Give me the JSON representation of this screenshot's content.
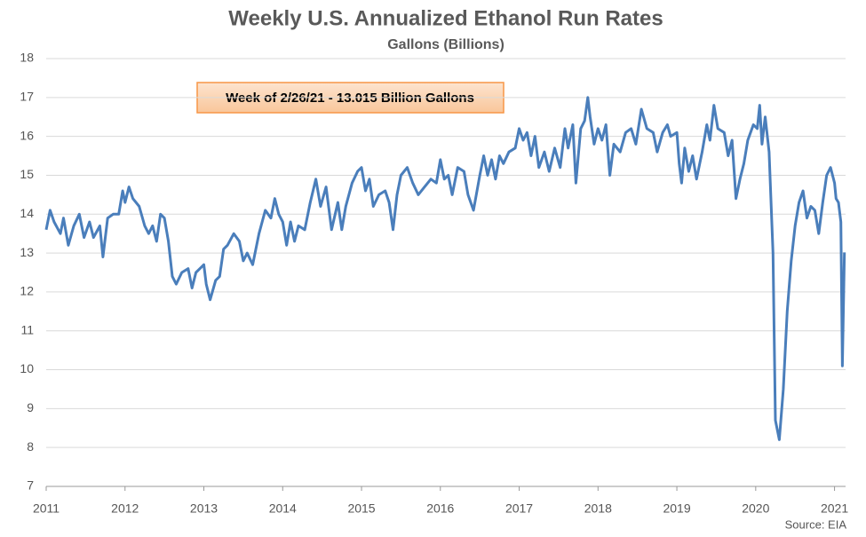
{
  "chart_data": {
    "type": "line",
    "title": "Weekly U.S. Annualized Ethanol Run Rates",
    "subtitle": "Gallons (Billions)",
    "annotation": "Week of 2/26/21 - 13.015 Billion Gallons",
    "source": "Source: EIA",
    "grid": true,
    "xlim": [
      2011,
      2021.14
    ],
    "xticks": [
      2011,
      2012,
      2013,
      2014,
      2015,
      2016,
      2017,
      2018,
      2019,
      2020,
      2021
    ],
    "ylim": [
      7,
      18
    ],
    "yticks": [
      7,
      8,
      9,
      10,
      11,
      12,
      13,
      14,
      15,
      16,
      17,
      18
    ],
    "series": [
      {
        "name": "Run Rate",
        "color": "#4a7ebb",
        "x": [
          2011.0,
          2011.05,
          2011.1,
          2011.18,
          2011.22,
          2011.28,
          2011.35,
          2011.42,
          2011.48,
          2011.55,
          2011.6,
          2011.68,
          2011.72,
          2011.78,
          2011.85,
          2011.92,
          2011.97,
          2012.0,
          2012.05,
          2012.1,
          2012.18,
          2012.25,
          2012.3,
          2012.35,
          2012.4,
          2012.45,
          2012.5,
          2012.55,
          2012.6,
          2012.65,
          2012.72,
          2012.8,
          2012.85,
          2012.9,
          2012.95,
          2013.0,
          2013.03,
          2013.08,
          2013.15,
          2013.2,
          2013.25,
          2013.3,
          2013.38,
          2013.45,
          2013.5,
          2013.55,
          2013.62,
          2013.7,
          2013.78,
          2013.85,
          2013.9,
          2013.95,
          2014.0,
          2014.05,
          2014.1,
          2014.15,
          2014.2,
          2014.28,
          2014.35,
          2014.42,
          2014.48,
          2014.55,
          2014.62,
          2014.7,
          2014.75,
          2014.8,
          2014.88,
          2014.95,
          2015.0,
          2015.05,
          2015.1,
          2015.15,
          2015.22,
          2015.3,
          2015.35,
          2015.4,
          2015.45,
          2015.5,
          2015.58,
          2015.65,
          2015.72,
          2015.8,
          2015.88,
          2015.95,
          2016.0,
          2016.05,
          2016.1,
          2016.15,
          2016.22,
          2016.3,
          2016.35,
          2016.42,
          2016.5,
          2016.55,
          2016.6,
          2016.65,
          2016.7,
          2016.75,
          2016.8,
          2016.87,
          2016.95,
          2017.0,
          2017.05,
          2017.1,
          2017.15,
          2017.2,
          2017.25,
          2017.32,
          2017.38,
          2017.45,
          2017.52,
          2017.58,
          2017.62,
          2017.68,
          2017.72,
          2017.78,
          2017.83,
          2017.87,
          2017.9,
          2017.95,
          2018.0,
          2018.05,
          2018.1,
          2018.15,
          2018.2,
          2018.28,
          2018.35,
          2018.42,
          2018.48,
          2018.55,
          2018.62,
          2018.7,
          2018.75,
          2018.82,
          2018.88,
          2018.92,
          2019.0,
          2019.03,
          2019.06,
          2019.1,
          2019.15,
          2019.2,
          2019.25,
          2019.32,
          2019.38,
          2019.42,
          2019.47,
          2019.52,
          2019.6,
          2019.65,
          2019.7,
          2019.75,
          2019.8,
          2019.85,
          2019.9,
          2019.97,
          2020.02,
          2020.05,
          2020.08,
          2020.12,
          2020.17,
          2020.22,
          2020.25,
          2020.3,
          2020.35,
          2020.4,
          2020.45,
          2020.5,
          2020.55,
          2020.6,
          2020.65,
          2020.7,
          2020.75,
          2020.8,
          2020.85,
          2020.9,
          2020.95,
          2021.0,
          2021.02,
          2021.05,
          2021.08,
          2021.1,
          2021.125
        ],
        "values": [
          13.6,
          14.1,
          13.8,
          13.5,
          13.9,
          13.2,
          13.7,
          14.0,
          13.4,
          13.8,
          13.4,
          13.7,
          12.9,
          13.9,
          14.0,
          14.0,
          14.6,
          14.3,
          14.7,
          14.4,
          14.2,
          13.7,
          13.5,
          13.7,
          13.3,
          14.0,
          13.9,
          13.3,
          12.4,
          12.2,
          12.5,
          12.6,
          12.1,
          12.5,
          12.6,
          12.7,
          12.2,
          11.8,
          12.3,
          12.4,
          13.1,
          13.2,
          13.5,
          13.3,
          12.8,
          13.0,
          12.7,
          13.5,
          14.1,
          13.9,
          14.4,
          14.0,
          13.8,
          13.2,
          13.8,
          13.3,
          13.7,
          13.6,
          14.3,
          14.9,
          14.2,
          14.7,
          13.6,
          14.3,
          13.6,
          14.2,
          14.8,
          15.1,
          15.2,
          14.6,
          14.9,
          14.2,
          14.5,
          14.6,
          14.3,
          13.6,
          14.5,
          15.0,
          15.2,
          14.8,
          14.5,
          14.7,
          14.9,
          14.8,
          15.4,
          14.9,
          15.0,
          14.5,
          15.2,
          15.1,
          14.5,
          14.1,
          15.0,
          15.5,
          15.0,
          15.4,
          14.9,
          15.5,
          15.3,
          15.6,
          15.7,
          16.2,
          15.9,
          16.1,
          15.5,
          16.0,
          15.2,
          15.6,
          15.1,
          15.7,
          15.2,
          16.2,
          15.7,
          16.3,
          14.8,
          16.2,
          16.4,
          17.0,
          16.5,
          15.8,
          16.2,
          15.9,
          16.3,
          15.0,
          15.8,
          15.6,
          16.1,
          16.2,
          15.8,
          16.7,
          16.2,
          16.1,
          15.6,
          16.1,
          16.3,
          16.0,
          16.1,
          15.3,
          14.8,
          15.7,
          15.1,
          15.5,
          14.9,
          15.6,
          16.3,
          15.9,
          16.8,
          16.2,
          16.1,
          15.5,
          15.9,
          14.4,
          14.9,
          15.3,
          15.9,
          16.3,
          16.2,
          16.8,
          15.8,
          16.5,
          15.6,
          13.0,
          8.7,
          8.2,
          9.5,
          11.5,
          12.8,
          13.7,
          14.3,
          14.6,
          13.9,
          14.2,
          14.1,
          13.5,
          14.3,
          15.0,
          15.2,
          14.8,
          14.4,
          14.3,
          13.8,
          10.1,
          13.015
        ]
      }
    ]
  }
}
